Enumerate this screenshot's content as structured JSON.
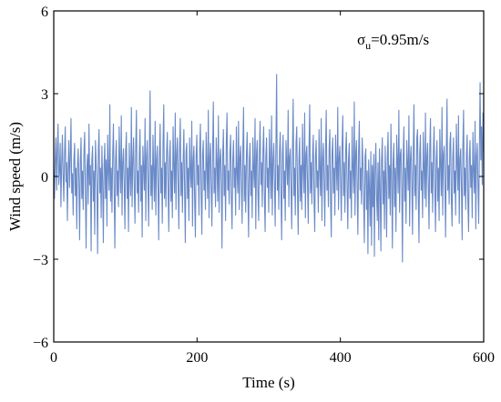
{
  "chart_data": {
    "type": "line",
    "title": "",
    "xlabel": "Time (s)",
    "ylabel": "Wind speed (m/s)",
    "xlim": [
      0,
      600
    ],
    "ylim": [
      -6,
      6
    ],
    "xticks": [
      0,
      200,
      400,
      600
    ],
    "yticks": [
      6,
      3,
      0,
      -3,
      -6
    ],
    "xtick_labels": [
      "0",
      "200",
      "400",
      "600"
    ],
    "ytick_labels": [
      "6",
      "3",
      "0",
      "−3",
      "−6"
    ],
    "annotation": {
      "symbol": "σ",
      "subscript": "u",
      "text": "=0.95m/s"
    },
    "grid": false,
    "legend": "none",
    "series": [
      {
        "color": "#6a8ac8",
        "sample_interval_s": 1,
        "values": [
          0.3,
          -0.8,
          0.6,
          1.4,
          -0.5,
          0.9,
          1.9,
          -0.3,
          0.2,
          1.2,
          -1.1,
          0.4,
          1.5,
          0.1,
          -0.9,
          0.8,
          1.8,
          -0.2,
          0.5,
          -1.6,
          0.2,
          1.3,
          -0.4,
          0.7,
          2.1,
          -0.6,
          0.1,
          -1.4,
          0.6,
          1.2,
          -0.7,
          0.3,
          -1.9,
          0.4,
          1.0,
          -0.2,
          -2.3,
          0.5,
          1.4,
          -0.8,
          0.2,
          -1.2,
          0.9,
          1.6,
          -0.5,
          -2.6,
          0.3,
          0.8,
          -1.0,
          1.9,
          -0.3,
          0.4,
          -2.7,
          0.6,
          1.1,
          -0.9,
          0.2,
          -2.1,
          1.3,
          0.5,
          -0.4,
          -2.8,
          0.9,
          1.7,
          -0.6,
          0.3,
          -1.5,
          1.1,
          -0.2,
          -2.4,
          0.4,
          1.2,
          -0.8,
          0.6,
          -1.8,
          1.5,
          0.2,
          -0.5,
          2.6,
          -0.9,
          0.3,
          -1.3,
          0.8,
          1.9,
          -0.4,
          -2.6,
          0.6,
          1.3,
          -0.7,
          0.2,
          -1.1,
          1.8,
          0.4,
          -0.6,
          2.2,
          -1.4,
          0.5,
          1.0,
          -0.3,
          -1.9,
          0.9,
          1.6,
          -0.8,
          0.3,
          -2.0,
          1.2,
          0.1,
          -0.7,
          2.5,
          -1.1,
          0.6,
          1.4,
          -0.4,
          -1.7,
          1.0,
          2.4,
          -0.6,
          0.2,
          -1.3,
          0.8,
          1.7,
          -0.9,
          0.4,
          -2.2,
          1.1,
          0.3,
          -0.5,
          2.1,
          -1.6,
          0.7,
          1.3,
          -0.2,
          -1.8,
          0.9,
          3.1,
          -0.7,
          0.4,
          -1.2,
          1.5,
          0.2,
          -0.9,
          2.0,
          -1.4,
          0.6,
          1.1,
          -0.3,
          -2.3,
          0.8,
          1.9,
          -0.6,
          0.3,
          -1.7,
          1.2,
          2.6,
          -0.8,
          0.5,
          -1.1,
          0.9,
          1.6,
          -0.4,
          -2.0,
          0.7,
          1.3,
          -0.9,
          0.2,
          -1.5,
          1.8,
          0.4,
          -0.6,
          2.3,
          -1.2,
          0.8,
          1.4,
          -0.3,
          -1.9,
          1.0,
          2.1,
          -0.7,
          0.5,
          -1.3,
          0.6,
          1.7,
          -0.5,
          -2.4,
          0.9,
          1.2,
          -0.8,
          0.3,
          -1.6,
          1.4,
          0.2,
          -0.4,
          2.0,
          -1.8,
          0.6,
          1.1,
          -0.9,
          -2.2,
          0.7,
          1.5,
          -0.3,
          0.4,
          -1.4,
          1.0,
          1.9,
          -0.6,
          -2.1,
          0.8,
          1.3,
          -0.5,
          0.2,
          -1.2,
          1.6,
          0.4,
          -0.8,
          2.4,
          -1.5,
          0.7,
          1.2,
          -0.4,
          -1.8,
          0.9,
          2.7,
          -0.6,
          0.3,
          -1.1,
          1.4,
          0.5,
          -0.9,
          2.2,
          -1.3,
          0.6,
          1.0,
          -0.2,
          -2.6,
          0.8,
          1.7,
          -0.7,
          0.4,
          -1.6,
          1.2,
          2.3,
          -0.5,
          0.2,
          -1.0,
          0.9,
          1.5,
          -0.8,
          -1.9,
          0.6,
          1.3,
          -0.4,
          0.3,
          -1.4,
          1.8,
          0.1,
          -0.6,
          2.0,
          -1.2,
          0.7,
          1.1,
          -0.3,
          -1.7,
          1.0,
          2.5,
          -0.9,
          0.4,
          -1.3,
          0.8,
          1.6,
          -0.5,
          -2.2,
          0.6,
          1.2,
          -0.7,
          0.2,
          -1.5,
          1.4,
          0.3,
          -0.4,
          2.1,
          -1.9,
          0.8,
          1.3,
          -0.6,
          -1.6,
          0.9,
          2.0,
          -0.3,
          0.5,
          -1.1,
          1.0,
          1.8,
          -0.7,
          -2.0,
          0.7,
          1.4,
          -0.4,
          0.3,
          -1.3,
          1.7,
          0.4,
          -0.8,
          2.2,
          -1.4,
          0.6,
          1.2,
          -0.2,
          -1.8,
          1.1,
          3.7,
          -0.5,
          0.4,
          -1.2,
          0.9,
          1.6,
          -0.6,
          -2.3,
          0.8,
          1.5,
          -0.8,
          0.2,
          -1.6,
          1.3,
          0.5,
          -0.3,
          2.4,
          -1.1,
          0.7,
          1.0,
          -0.4,
          -1.9,
          0.9,
          2.8,
          -0.7,
          0.3,
          -1.4,
          1.2,
          1.8,
          -0.5,
          -2.1,
          0.6,
          1.4,
          -0.9,
          0.4,
          -1.2,
          1.9,
          0.2,
          -0.6,
          2.3,
          -1.5,
          0.8,
          1.1,
          -0.3,
          -1.7,
          1.0,
          2.6,
          -0.6,
          0.5,
          -1.0,
          0.8,
          1.5,
          -0.8,
          -2.0,
          0.7,
          1.3,
          -0.4,
          0.2,
          -1.3,
          1.7,
          0.3,
          -0.7,
          2.1,
          -1.6,
          0.6,
          1.2,
          -0.2,
          -1.8,
          0.9,
          2.4,
          -0.5,
          0.4,
          -1.1,
          1.0,
          1.7,
          -0.9,
          -2.2,
          0.8,
          1.4,
          -0.6,
          0.3,
          -1.4,
          1.5,
          0.4,
          -0.5,
          2.5,
          -1.2,
          0.7,
          1.1,
          -0.3,
          -1.6,
          1.1,
          2.2,
          -0.7,
          0.5,
          -1.3,
          0.9,
          1.6,
          -0.4,
          -1.9,
          0.6,
          1.2,
          -0.8,
          0.2,
          -1.5,
          1.8,
          0.3,
          -0.6,
          2.7,
          -1.4,
          0.8,
          1.3,
          -0.4,
          -2.1,
          0.9,
          2.0,
          -0.5,
          0.3,
          -1.0,
          1.4,
          0.5,
          -0.9,
          -2.4,
          0.7,
          1.0,
          -1.2,
          0.2,
          -2.8,
          0.6,
          -0.4,
          -1.8,
          0.9,
          -2.5,
          0.4,
          -1.1,
          0.8,
          -2.9,
          0.3,
          1.2,
          -0.7,
          -1.6,
          0.5,
          -2.3,
          1.0,
          -0.5,
          -2.7,
          0.6,
          1.4,
          -1.0,
          0.2,
          -1.9,
          1.1,
          -0.3,
          -2.2,
          0.7,
          1.6,
          -0.8,
          0.4,
          -1.4,
          1.9,
          -0.2,
          -2.6,
          0.5,
          1.2,
          -1.1,
          0.3,
          -2.0,
          1.5,
          0.6,
          -0.6,
          2.4,
          -1.3,
          0.8,
          1.0,
          -0.4,
          -3.1,
          0.7,
          1.8,
          -0.9,
          0.3,
          -1.7,
          1.3,
          0.5,
          -0.5,
          2.2,
          -1.8,
          0.6,
          1.1,
          -0.2,
          -2.1,
          0.9,
          2.6,
          -0.7,
          0.4,
          -1.2,
          1.4,
          1.7,
          -0.6,
          -2.4,
          0.8,
          1.5,
          -0.5,
          0.2,
          -1.5,
          1.6,
          0.3,
          -0.8,
          2.3,
          -1.1,
          0.7,
          1.2,
          -0.3,
          -1.9,
          1.0,
          2.1,
          -0.6,
          0.5,
          -1.3,
          0.9,
          1.8,
          -0.4,
          -2.0,
          0.6,
          1.3,
          -0.9,
          0.3,
          -1.6,
          1.7,
          0.4,
          -0.7,
          2.5,
          -1.4,
          0.8,
          1.1,
          -0.2,
          -2.2,
          0.9,
          2.8,
          -0.5,
          0.4,
          -1.0,
          1.2,
          1.6,
          -0.8,
          -1.8,
          0.7,
          1.4,
          -0.6,
          0.2,
          -1.4,
          1.9,
          0.5,
          -0.5,
          2.2,
          -1.7,
          0.6,
          1.0,
          -0.3,
          -2.3,
          1.1,
          2.4,
          -0.7,
          0.3,
          -1.2,
          0.8,
          1.5,
          -0.9,
          -2.0,
          0.6,
          1.3,
          -0.4,
          0.4,
          -1.5,
          1.6,
          0.2,
          -0.6,
          2.0,
          -1.9,
          0.7,
          1.2,
          -0.2,
          -1.7,
          0.9,
          3.4,
          0.6,
          1.8,
          -0.3,
          2.3,
          0.9
        ]
      }
    ]
  }
}
